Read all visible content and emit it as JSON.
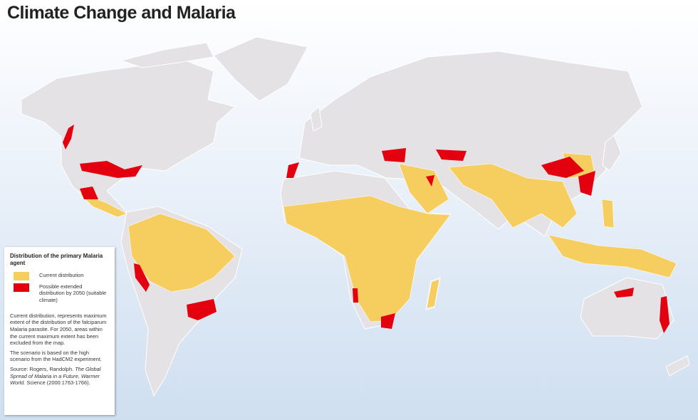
{
  "title": "Climate Change and Malaria",
  "colors": {
    "land": "#e4e2e4",
    "border": "#ffffff",
    "current": "#f6cd5f",
    "extended": "#e3000f",
    "ocean": "#dde8f5"
  },
  "legend": {
    "title": "Distribution of the primary Malaria agent",
    "items": [
      {
        "label": "Current distribution",
        "color": "#f6cd5f"
      },
      {
        "label": "Possible extended distribution by 2050 (suitable climate)",
        "color": "#e3000f"
      }
    ],
    "note1": "Current distribution, represents maximum extent of the distribution of the falciparum Malaria parasite. For 2050, areas within the current maximum extent has been excluded from the map.",
    "note2": "The scenario is based on the high scenario from the HadCM2 experiment.",
    "source_prefix": "Source: Rogers, Randolph.",
    "source_title": "The Global Spread of Malaria in a Future, Warmer World.",
    "source_suffix": "Science (2000:1763-1766)."
  }
}
